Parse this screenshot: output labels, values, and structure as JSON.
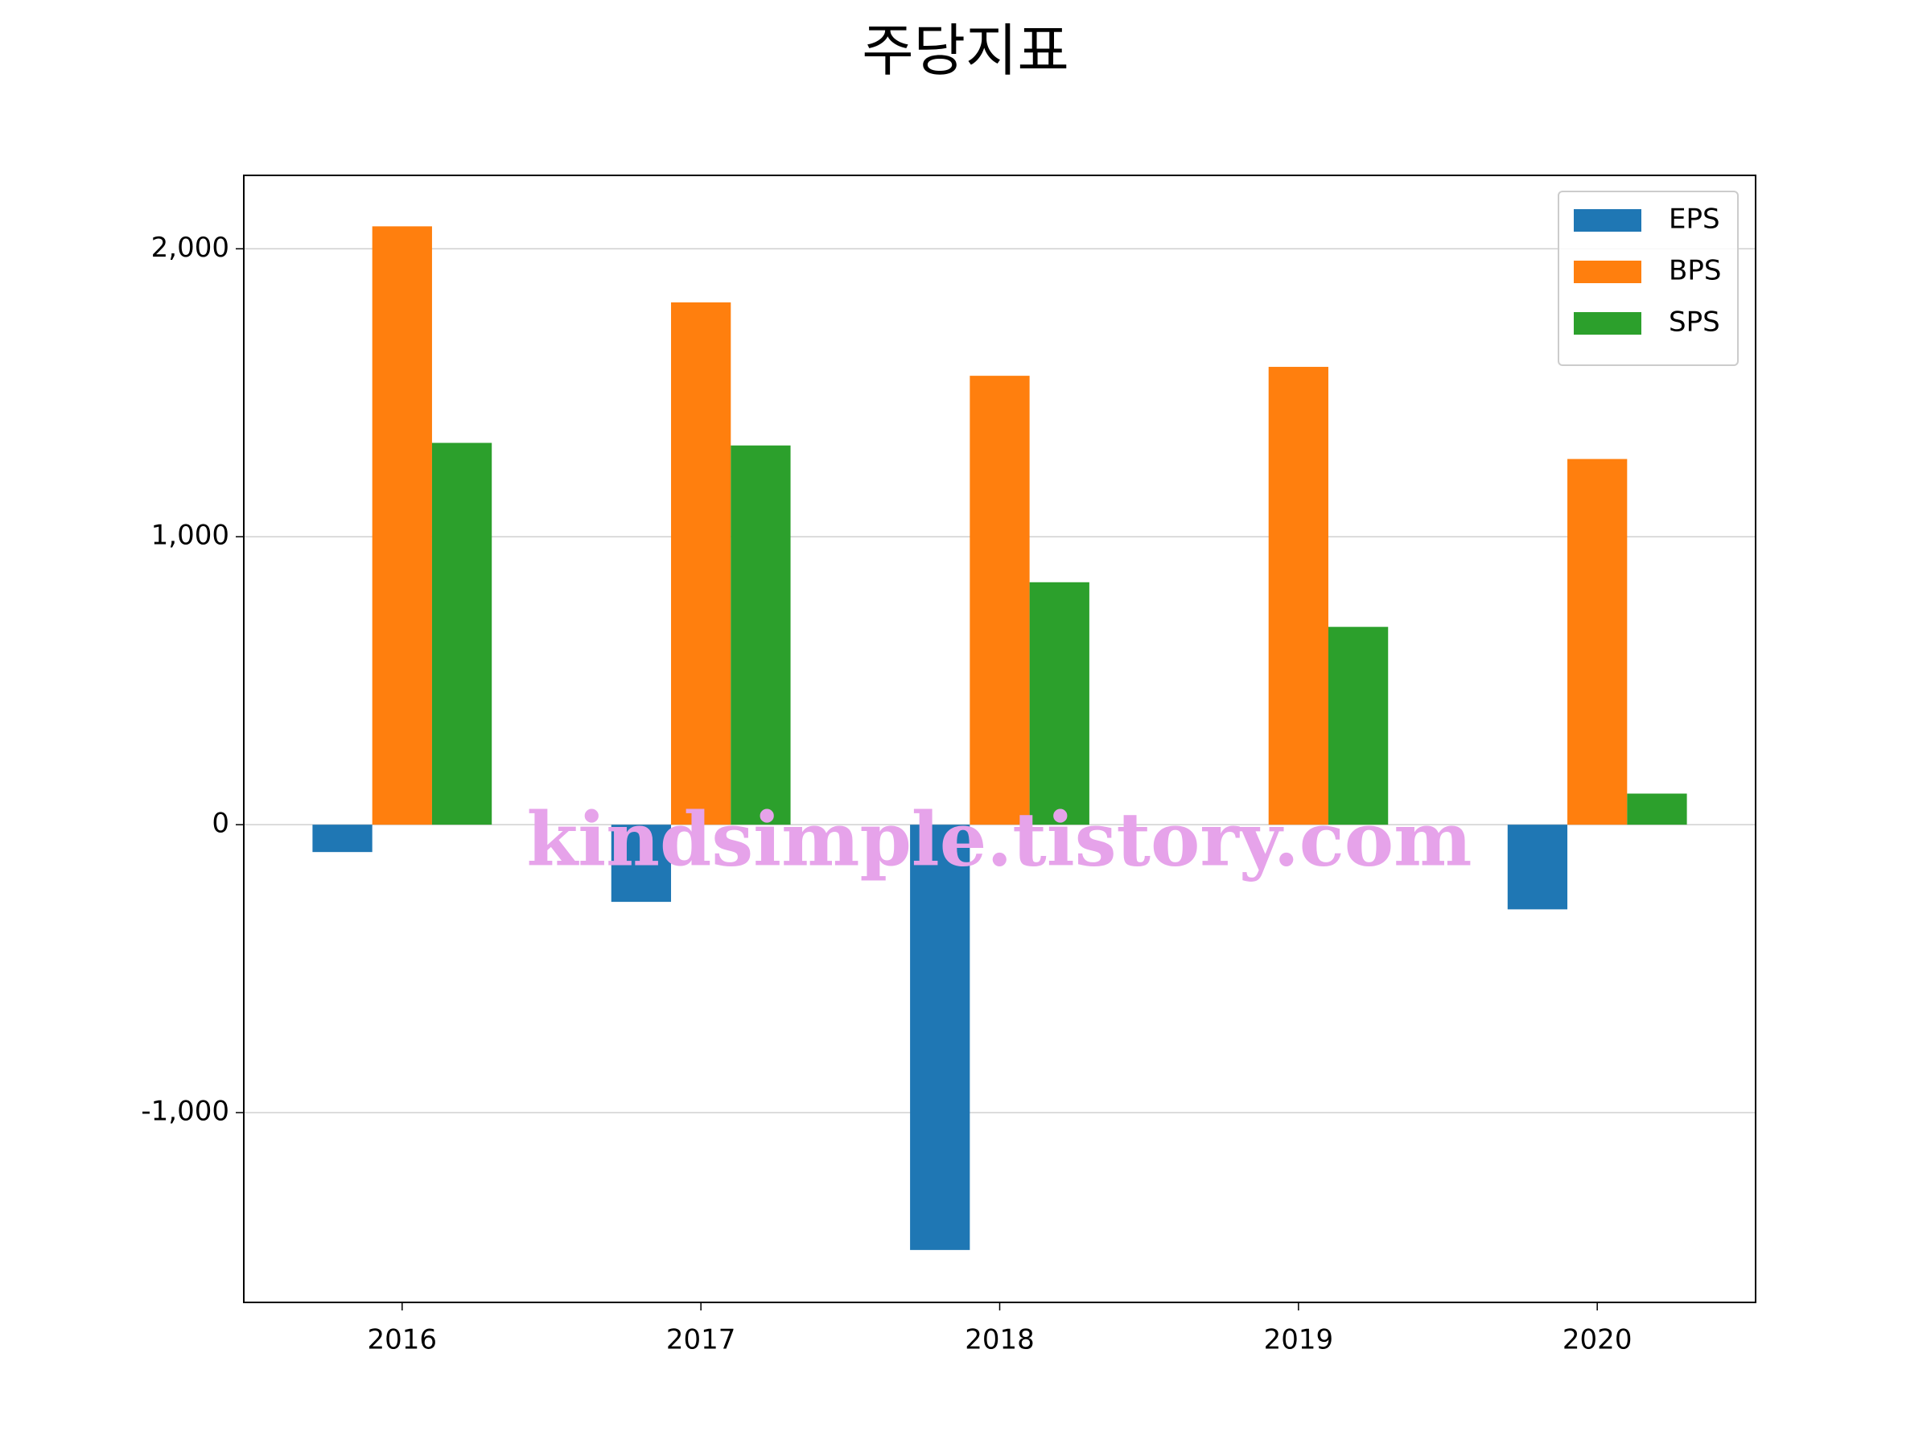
{
  "chart_data": {
    "type": "bar",
    "title": "주당지표",
    "categories": [
      "2016",
      "2017",
      "2018",
      "2019",
      "2020"
    ],
    "series": [
      {
        "name": "EPS",
        "color": "#1f77b4",
        "values": [
          -95,
          -268,
          -1477,
          0,
          -294
        ]
      },
      {
        "name": "BPS",
        "color": "#ff7f0e",
        "values": [
          2078,
          1814,
          1559,
          1590,
          1270
        ]
      },
      {
        "name": "SPS",
        "color": "#2ca02c",
        "values": [
          1326,
          1317,
          842,
          687,
          108
        ]
      }
    ],
    "ylim": [
      -1659,
      2255
    ],
    "yticks": [
      {
        "value": -1000,
        "label": "-1,000"
      },
      0,
      {
        "value": 1000,
        "label": "1,000"
      },
      {
        "value": 2000,
        "label": "2,000"
      }
    ],
    "grid": true,
    "legend": "upper right",
    "watermark": "kindsimple.tistory.com"
  }
}
